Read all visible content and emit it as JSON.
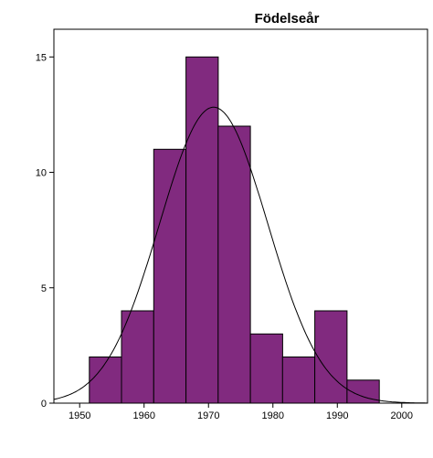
{
  "chart_data": {
    "type": "bar",
    "title": "Födelseår",
    "xlabel": "",
    "ylabel": "",
    "bar_color": "#812a7f",
    "bins": [
      {
        "start": 1951.5,
        "end": 1956.5,
        "count": 2
      },
      {
        "start": 1956.5,
        "end": 1961.5,
        "count": 4
      },
      {
        "start": 1961.5,
        "end": 1966.5,
        "count": 11
      },
      {
        "start": 1966.5,
        "end": 1971.5,
        "count": 15
      },
      {
        "start": 1971.5,
        "end": 1976.5,
        "count": 12
      },
      {
        "start": 1976.5,
        "end": 1981.5,
        "count": 3
      },
      {
        "start": 1981.5,
        "end": 1986.5,
        "count": 2
      },
      {
        "start": 1986.5,
        "end": 1991.5,
        "count": 4
      },
      {
        "start": 1991.5,
        "end": 1996.5,
        "count": 1
      }
    ],
    "normal_curve": {
      "mean": 1970.8,
      "sd": 8.4,
      "n": 54,
      "bin_width": 5
    },
    "xlim": [
      1946,
      2004
    ],
    "ylim": [
      0,
      16.2
    ],
    "x_ticks": [
      1950,
      1960,
      1970,
      1980,
      1990,
      2000
    ],
    "x_tick_labels": [
      "1950",
      "1960",
      "1970",
      "1980",
      "1990",
      "2000"
    ],
    "y_ticks": [
      0,
      5,
      10,
      15
    ],
    "y_tick_labels": [
      "0",
      "5",
      "10",
      "15"
    ],
    "grid": false,
    "legend": "none"
  }
}
